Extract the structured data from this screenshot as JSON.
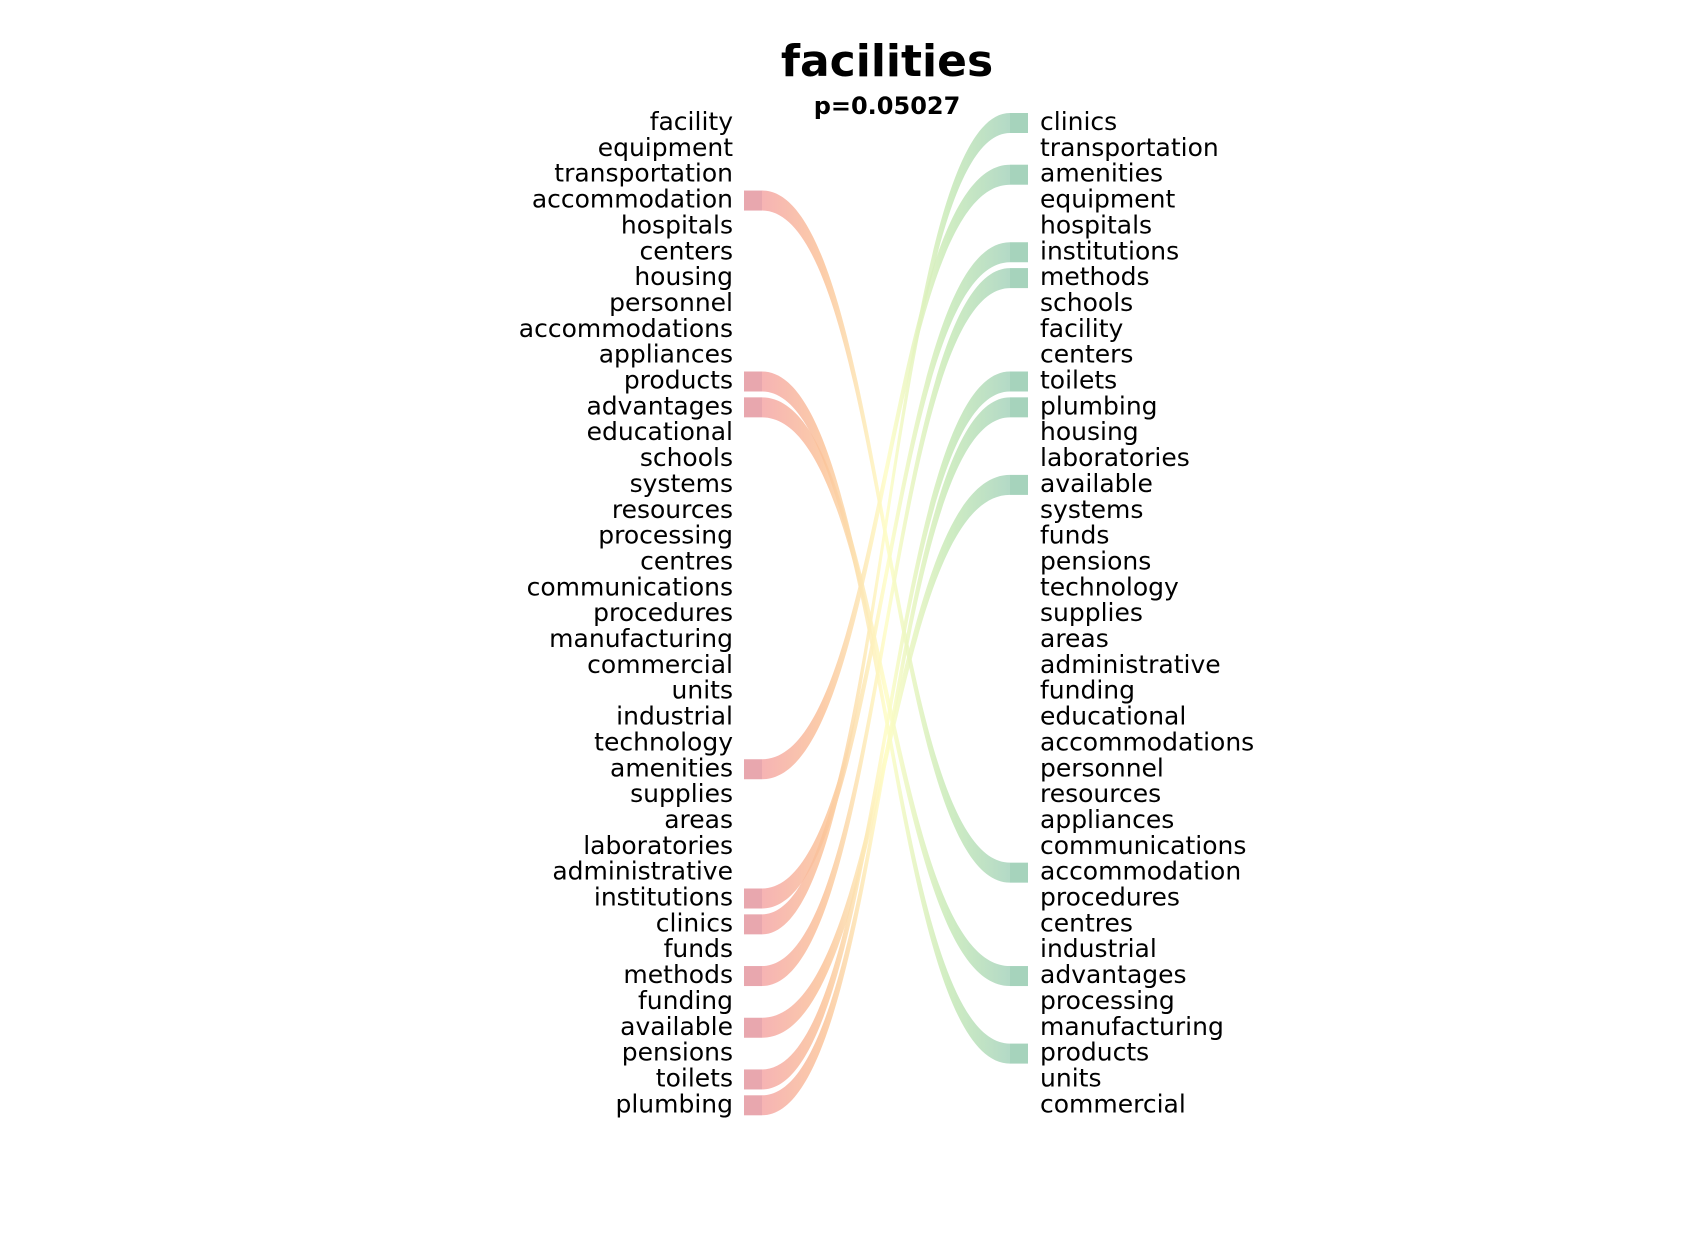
{
  "title": "facilities",
  "subtitle": "p=0.05027",
  "colors": {
    "left_bar": "#e8a7ae",
    "right_bar": "#a6d3bc",
    "gradient": [
      "#f4a6a6",
      "#fbc49a",
      "#fefdc6",
      "#c8eab8",
      "#a6d3bc"
    ]
  },
  "left_words": [
    "facility",
    "equipment",
    "transportation",
    "accommodation",
    "hospitals",
    "centers",
    "housing",
    "personnel",
    "accommodations",
    "appliances",
    "products",
    "advantages",
    "educational",
    "schools",
    "systems",
    "resources",
    "processing",
    "centres",
    "communications",
    "procedures",
    "manufacturing",
    "commercial",
    "units",
    "industrial",
    "technology",
    "amenities",
    "supplies",
    "areas",
    "laboratories",
    "administrative",
    "institutions",
    "clinics",
    "funds",
    "methods",
    "funding",
    "available",
    "pensions",
    "toilets",
    "plumbing"
  ],
  "right_words": [
    "clinics",
    "transportation",
    "amenities",
    "equipment",
    "hospitals",
    "institutions",
    "methods",
    "schools",
    "facility",
    "centers",
    "toilets",
    "plumbing",
    "housing",
    "laboratories",
    "available",
    "systems",
    "funds",
    "pensions",
    "technology",
    "supplies",
    "areas",
    "administrative",
    "funding",
    "educational",
    "accommodations",
    "personnel",
    "resources",
    "appliances",
    "communications",
    "accommodation",
    "procedures",
    "centres",
    "industrial",
    "advantages",
    "processing",
    "manufacturing",
    "products",
    "units",
    "commercial"
  ],
  "links": [
    {
      "from": "accommodation",
      "to": "accommodation"
    },
    {
      "from": "products",
      "to": "products"
    },
    {
      "from": "advantages",
      "to": "advantages"
    },
    {
      "from": "amenities",
      "to": "amenities"
    },
    {
      "from": "institutions",
      "to": "institutions"
    },
    {
      "from": "clinics",
      "to": "clinics"
    },
    {
      "from": "methods",
      "to": "methods"
    },
    {
      "from": "available",
      "to": "available"
    },
    {
      "from": "toilets",
      "to": "toilets"
    },
    {
      "from": "plumbing",
      "to": "plumbing"
    }
  ]
}
